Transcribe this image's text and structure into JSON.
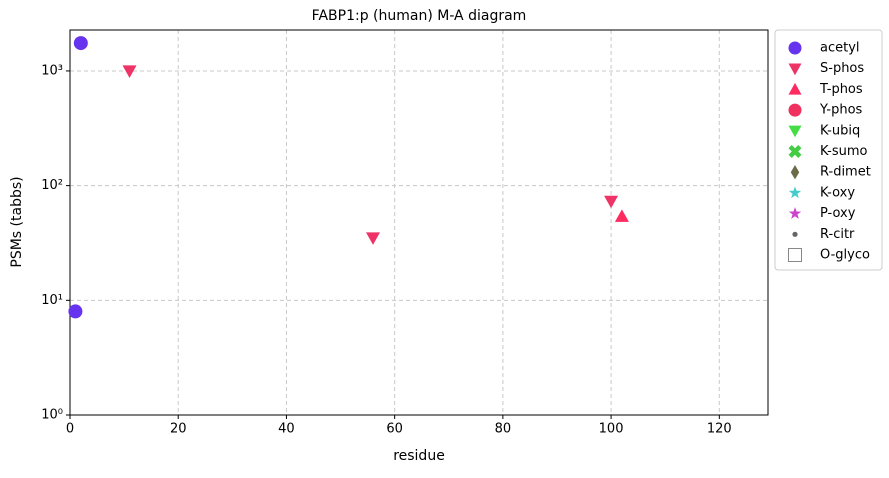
{
  "chart_data": {
    "type": "scatter",
    "title": "FABP1:p (human) M-A diagram",
    "x_label": "residue",
    "y_label": "PSMs (tabbs)",
    "xlim": [
      0,
      129
    ],
    "ylim": [
      1,
      2275
    ],
    "log_y": true,
    "grid": true,
    "legend": "outside right",
    "xticks": [
      0,
      20,
      40,
      60,
      80,
      100,
      120
    ],
    "yticks": [
      {
        "value": 1,
        "label": "10⁰"
      },
      {
        "value": 10,
        "label": "10¹"
      },
      {
        "value": 100,
        "label": "10²"
      },
      {
        "value": 1000,
        "label": "10³"
      }
    ],
    "series": [
      {
        "name": "acetyl",
        "color": "#6633ee",
        "marker": "circle",
        "x": [
          2,
          1
        ],
        "values": [
          1750,
          8
        ]
      },
      {
        "name": "S-phos",
        "color": "#ee3366",
        "marker": "triangle-down",
        "x": [
          11,
          56,
          100
        ],
        "values": [
          1000,
          35,
          73
        ]
      },
      {
        "name": "T-phos",
        "color": "#ff2a60",
        "marker": "triangle-up",
        "x": [
          102
        ],
        "values": [
          54
        ]
      },
      {
        "name": "Y-phos",
        "color": "#f0305f",
        "marker": "circle",
        "x": [],
        "values": []
      },
      {
        "name": "K-ubiq",
        "color": "#44dd44",
        "marker": "triangle-down",
        "x": [],
        "values": []
      },
      {
        "name": "K-sumo",
        "color": "#44cc44",
        "marker": "x",
        "x": [],
        "values": []
      },
      {
        "name": "R-dimet",
        "color": "#6b6b47",
        "marker": "diamond",
        "x": [],
        "values": []
      },
      {
        "name": "K-oxy",
        "color": "#44cccc",
        "marker": "star",
        "x": [],
        "values": []
      },
      {
        "name": "P-oxy",
        "color": "#cc44cc",
        "marker": "star",
        "x": [],
        "values": []
      },
      {
        "name": "R-citr",
        "color": "#666666",
        "marker": "dot",
        "x": [],
        "values": []
      },
      {
        "name": "O-glyco",
        "color": "#888888",
        "marker": "square-open",
        "x": [],
        "values": []
      }
    ]
  }
}
